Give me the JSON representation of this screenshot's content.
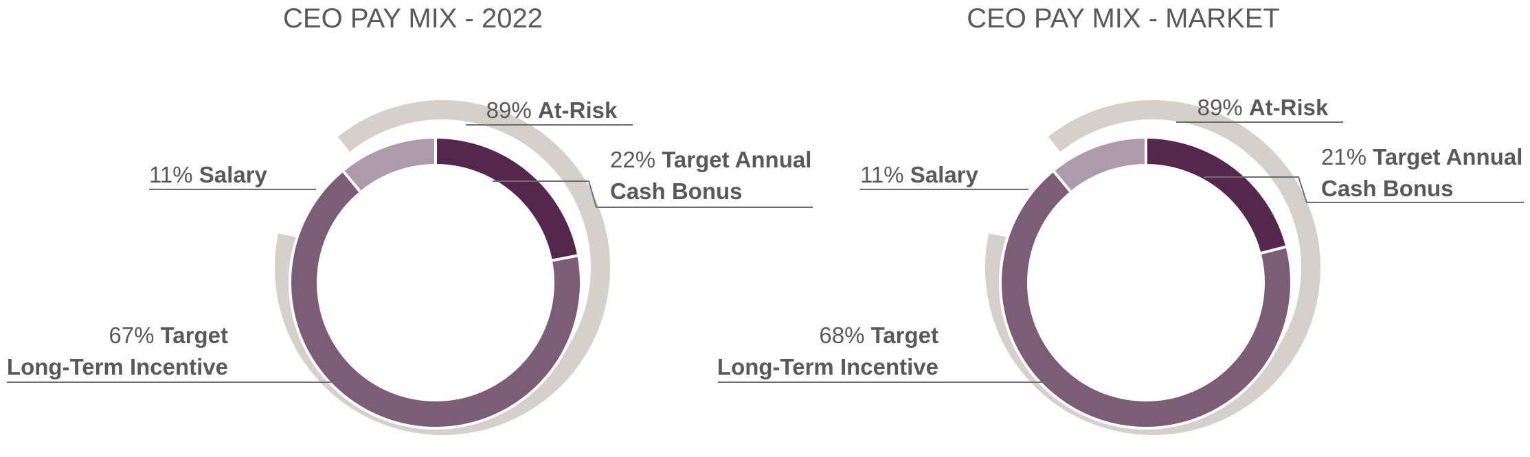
{
  "chart_data": [
    {
      "type": "pie",
      "title": "CEO PAY MIX - 2022",
      "slices": [
        {
          "name": "Salary",
          "value": 11,
          "pct_label": "11%",
          "label_lines": [
            "Salary"
          ],
          "color": "#ad9aab"
        },
        {
          "name": "Target Annual Cash Bonus",
          "value": 22,
          "pct_label": "22%",
          "label_lines": [
            "Target Annual",
            "Cash Bonus"
          ],
          "color": "#55274d"
        },
        {
          "name": "Target Long-Term Incentive",
          "value": 67,
          "pct_label": "67%",
          "label_lines": [
            "Target",
            "Long-Term Incentive"
          ],
          "color": "#7b5e76"
        }
      ],
      "at_risk": {
        "value": 89,
        "pct_label": "89%",
        "label": "At-Risk",
        "color": "#d5d0cb"
      }
    },
    {
      "type": "pie",
      "title": "CEO PAY MIX - MARKET",
      "slices": [
        {
          "name": "Salary",
          "value": 11,
          "pct_label": "11%",
          "label_lines": [
            "Salary"
          ],
          "color": "#ad9aab"
        },
        {
          "name": "Target Annual Cash Bonus",
          "value": 21,
          "pct_label": "21%",
          "label_lines": [
            "Target Annual",
            "Cash Bonus"
          ],
          "color": "#55274d"
        },
        {
          "name": "Target Long-Term Incentive",
          "value": 68,
          "pct_label": "68%",
          "label_lines": [
            "Target",
            "Long-Term Incentive"
          ],
          "color": "#7b5e76"
        }
      ],
      "at_risk": {
        "value": 89,
        "pct_label": "89%",
        "label": "At-Risk",
        "color": "#d5d0cb"
      }
    }
  ]
}
